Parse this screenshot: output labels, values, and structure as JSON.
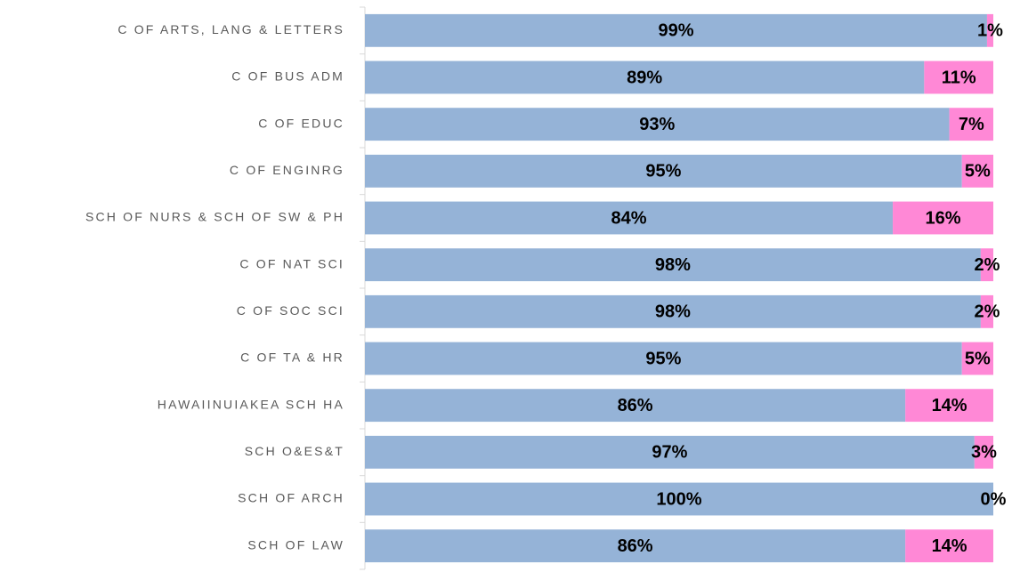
{
  "chart_data": {
    "type": "stacked_bar_horizontal",
    "categories": [
      "C OF ARTS, LANG & LETTERS",
      "C OF BUS ADM",
      "C OF EDUC",
      "C OF ENGINRG",
      "SCH OF NURS & SCH OF SW & PH",
      "C OF NAT SCI",
      "C OF SOC SCI",
      "C OF TA & HR",
      "HAWAIINUIAKEA SCH HA",
      "SCH O&ES&T",
      "SCH OF ARCH",
      "SCH OF LAW"
    ],
    "series": [
      {
        "color": "#95b3d7",
        "values": [
          99,
          89,
          93,
          95,
          84,
          98,
          98,
          95,
          86,
          97,
          100,
          86
        ],
        "value_labels": [
          "99%",
          "89%",
          "93%",
          "95%",
          "84%",
          "98%",
          "98%",
          "95%",
          "86%",
          "97%",
          "100%",
          "86%"
        ]
      },
      {
        "color": "#ff88d6",
        "values": [
          1,
          11,
          7,
          5,
          16,
          2,
          2,
          5,
          14,
          3,
          0,
          14
        ],
        "value_labels": [
          "1%",
          "11%",
          "7%",
          "5%",
          "16%",
          "2%",
          "2%",
          "5%",
          "14%",
          "3%",
          "0%",
          "14%"
        ]
      }
    ],
    "xlim": [
      0,
      100
    ]
  }
}
